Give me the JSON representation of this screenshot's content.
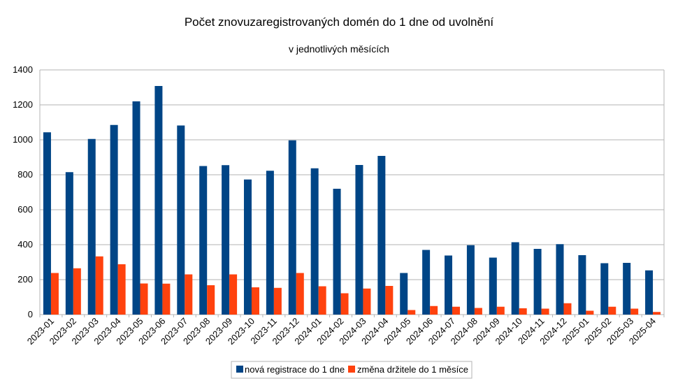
{
  "chart_data": {
    "type": "bar",
    "title": "Počet znovuzaregistrovaných domén do 1 dne od uvolnění",
    "subtitle": "v jednotlivých měsících",
    "categories": [
      "2023-01",
      "2023-02",
      "2023-03",
      "2023-04",
      "2023-05",
      "2023-06",
      "2023-07",
      "2023-08",
      "2023-09",
      "2023-10",
      "2023-11",
      "2023-12",
      "2024-01",
      "2024-02",
      "2024-03",
      "2024-04",
      "2024-05",
      "2024-06",
      "2024-07",
      "2024-08",
      "2024-09",
      "2024-10",
      "2024-11",
      "2024-12",
      "2025-01",
      "2025-02",
      "2025-03",
      "2025-04"
    ],
    "series": [
      {
        "name": "nová registrace do 1 dne",
        "color": "#004586",
        "values": [
          1043,
          815,
          1005,
          1085,
          1220,
          1308,
          1082,
          850,
          855,
          773,
          823,
          997,
          837,
          720,
          856,
          908,
          238,
          370,
          338,
          397,
          326,
          414,
          376,
          403,
          340,
          294,
          296,
          253
        ]
      },
      {
        "name": "změna držitele do 1 měsíce",
        "color": "#ff420e",
        "values": [
          238,
          265,
          333,
          288,
          178,
          177,
          230,
          168,
          230,
          156,
          153,
          238,
          162,
          122,
          149,
          164,
          26,
          49,
          45,
          38,
          45,
          36,
          34,
          65,
          22,
          45,
          34,
          15
        ]
      }
    ],
    "xlabel": "",
    "ylabel": "",
    "ylim": [
      0,
      1400
    ],
    "yticks": [
      "0",
      "200",
      "400",
      "600",
      "800",
      "1000",
      "1200",
      "1400"
    ],
    "grid": true,
    "legend_position": "bottom"
  }
}
